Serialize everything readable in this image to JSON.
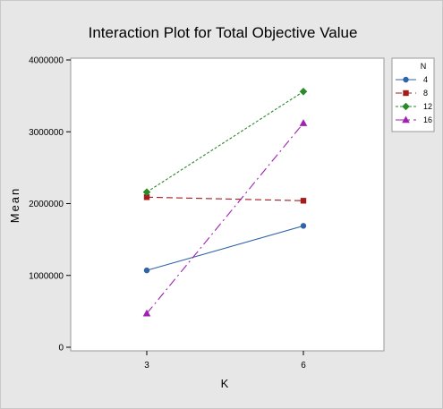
{
  "chart_data": {
    "type": "line",
    "title": "Interaction Plot for Total Objective Value",
    "xlabel": "K",
    "ylabel": "Mean",
    "categories": [
      "3",
      "6"
    ],
    "ylim": [
      0,
      4000000
    ],
    "yticks": [
      0,
      1000000,
      2000000,
      3000000,
      4000000
    ],
    "ytick_labels": [
      "0",
      "1000000",
      "2000000",
      "3000000",
      "4000000"
    ],
    "grid": false,
    "legend_title": "N",
    "legend_position": "right",
    "series": [
      {
        "name": "4",
        "values": [
          1070000,
          1690000
        ],
        "color": "#2f64a8",
        "dash": "solid",
        "marker": "circle"
      },
      {
        "name": "8",
        "values": [
          2090000,
          2040000
        ],
        "color": "#a51c1c",
        "dash": "dashed",
        "marker": "square"
      },
      {
        "name": "12",
        "values": [
          2160000,
          3560000
        ],
        "color": "#2a8a2a",
        "dash": "dotted",
        "marker": "diamond"
      },
      {
        "name": "16",
        "values": [
          470000,
          3120000
        ],
        "color": "#a020b0",
        "dash": "dashdot",
        "marker": "triangle"
      }
    ]
  }
}
